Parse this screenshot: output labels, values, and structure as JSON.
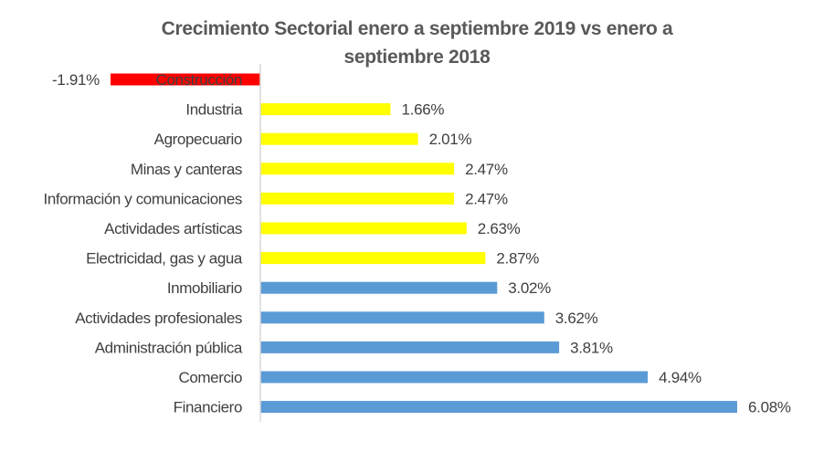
{
  "chart_data": {
    "type": "bar",
    "orientation": "horizontal",
    "title": "Crecimiento Sectorial enero a septiembre 2019 vs enero a septiembre 2018",
    "title_lines": [
      "Crecimiento Sectorial enero a septiembre 2019 vs enero a",
      "septiembre 2018"
    ],
    "xlabel": "",
    "ylabel": "",
    "xlim": [
      -1.91,
      6.08
    ],
    "grid": false,
    "legend": "none",
    "categories": [
      "Construcción",
      "Industria",
      "Agropecuario",
      "Minas y canteras",
      "Información y comunicaciones",
      "Actividades artísticas",
      "Electricidad, gas y agua",
      "Inmobiliario",
      "Actividades profesionales",
      "Administración pública",
      "Comercio",
      "Financiero"
    ],
    "values": [
      -1.91,
      1.66,
      2.01,
      2.47,
      2.47,
      2.63,
      2.87,
      3.02,
      3.62,
      3.81,
      4.94,
      6.08
    ],
    "data_labels": [
      "-1.91%",
      "1.66%",
      "2.01%",
      "2.47%",
      "2.47%",
      "2.63%",
      "2.87%",
      "3.02%",
      "3.62%",
      "3.81%",
      "4.94%",
      "6.08%"
    ],
    "bar_colors": [
      "#FF0000",
      "#FFFF00",
      "#FFFF00",
      "#FFFF00",
      "#FFFF00",
      "#FFFF00",
      "#FFFF00",
      "#5B9BD5",
      "#5B9BD5",
      "#5B9BD5",
      "#5B9BD5",
      "#5B9BD5"
    ],
    "axis_color": "#D9D9D9"
  }
}
